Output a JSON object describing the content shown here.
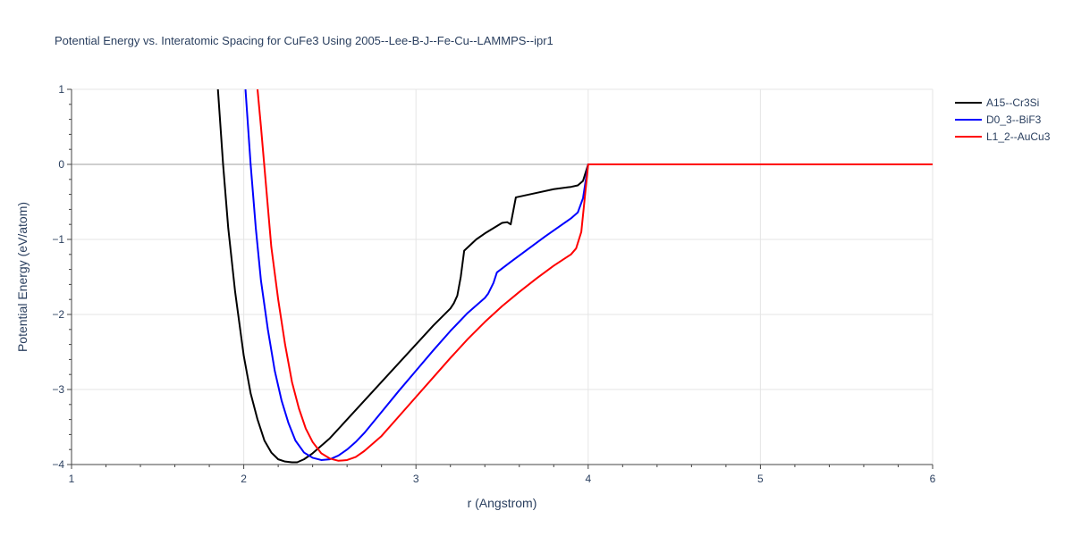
{
  "chart_data": {
    "type": "line",
    "title": "Potential Energy vs. Interatomic Spacing for CuFe3 Using 2005--Lee-B-J--Fe-Cu--LAMMPS--ipr1",
    "xlabel": "r (Angstrom)",
    "ylabel": "Potential Energy (eV/atom)",
    "xlim": [
      1,
      6
    ],
    "ylim": [
      -4,
      1
    ],
    "xticks": [
      "1",
      "2",
      "3",
      "4",
      "5",
      "6"
    ],
    "yticks": [
      "1",
      "0",
      "−1",
      "−2",
      "−3",
      "−4"
    ],
    "grid": true,
    "legend_position": "top-right",
    "series": [
      {
        "name": "A15--Cr3Si",
        "color": "#000000",
        "x": [
          1.85,
          1.88,
          1.91,
          1.95,
          2.0,
          2.04,
          2.08,
          2.12,
          2.16,
          2.2,
          2.24,
          2.28,
          2.31,
          2.35,
          2.4,
          2.45,
          2.5,
          2.6,
          2.7,
          2.8,
          2.9,
          3.0,
          3.1,
          3.2,
          3.22,
          3.24,
          3.26,
          3.28,
          3.35,
          3.4,
          3.45,
          3.5,
          3.53,
          3.55,
          3.58,
          3.7,
          3.8,
          3.9,
          3.94,
          3.97,
          4.0,
          4.1,
          4.5,
          5.0,
          5.5,
          6.0
        ],
        "y": [
          1.0,
          0.0,
          -0.85,
          -1.7,
          -2.55,
          -3.05,
          -3.4,
          -3.68,
          -3.84,
          -3.93,
          -3.96,
          -3.97,
          -3.97,
          -3.93,
          -3.85,
          -3.75,
          -3.65,
          -3.4,
          -3.15,
          -2.9,
          -2.65,
          -2.4,
          -2.15,
          -1.92,
          -1.85,
          -1.75,
          -1.5,
          -1.15,
          -1.0,
          -0.92,
          -0.85,
          -0.78,
          -0.77,
          -0.8,
          -0.44,
          -0.38,
          -0.33,
          -0.3,
          -0.28,
          -0.22,
          0.0,
          0.0,
          0.0,
          0.0,
          0.0,
          0.0
        ]
      },
      {
        "name": "D0_3--BiF3",
        "color": "#0000ff",
        "x": [
          2.01,
          2.04,
          2.07,
          2.1,
          2.14,
          2.18,
          2.22,
          2.26,
          2.3,
          2.35,
          2.4,
          2.45,
          2.5,
          2.55,
          2.6,
          2.65,
          2.7,
          2.8,
          2.9,
          3.0,
          3.1,
          3.2,
          3.3,
          3.4,
          3.42,
          3.45,
          3.47,
          3.55,
          3.65,
          3.75,
          3.85,
          3.9,
          3.94,
          3.97,
          4.0,
          4.5,
          5.0,
          5.5,
          6.0
        ],
        "y": [
          1.0,
          0.0,
          -0.85,
          -1.55,
          -2.2,
          -2.75,
          -3.15,
          -3.45,
          -3.68,
          -3.84,
          -3.91,
          -3.94,
          -3.93,
          -3.88,
          -3.8,
          -3.7,
          -3.58,
          -3.3,
          -3.02,
          -2.75,
          -2.48,
          -2.22,
          -1.98,
          -1.78,
          -1.72,
          -1.58,
          -1.44,
          -1.3,
          -1.13,
          -0.96,
          -0.8,
          -0.72,
          -0.64,
          -0.45,
          0.0,
          0.0,
          0.0,
          0.0,
          0.0
        ]
      },
      {
        "name": "L1_2--AuCu3",
        "color": "#ff0000",
        "x": [
          2.08,
          2.1,
          2.13,
          2.16,
          2.2,
          2.24,
          2.28,
          2.32,
          2.36,
          2.4,
          2.45,
          2.5,
          2.55,
          2.6,
          2.65,
          2.7,
          2.8,
          2.9,
          3.0,
          3.1,
          3.2,
          3.3,
          3.4,
          3.5,
          3.6,
          3.7,
          3.8,
          3.9,
          3.93,
          3.96,
          3.98,
          4.0,
          4.5,
          5.0,
          5.5,
          6.0
        ],
        "y": [
          1.0,
          0.5,
          -0.3,
          -1.1,
          -1.8,
          -2.4,
          -2.9,
          -3.25,
          -3.52,
          -3.7,
          -3.85,
          -3.92,
          -3.95,
          -3.94,
          -3.9,
          -3.82,
          -3.62,
          -3.36,
          -3.1,
          -2.84,
          -2.58,
          -2.33,
          -2.1,
          -1.89,
          -1.7,
          -1.52,
          -1.35,
          -1.2,
          -1.12,
          -0.9,
          -0.45,
          0.0,
          0.0,
          0.0,
          0.0,
          0.0
        ]
      }
    ]
  }
}
